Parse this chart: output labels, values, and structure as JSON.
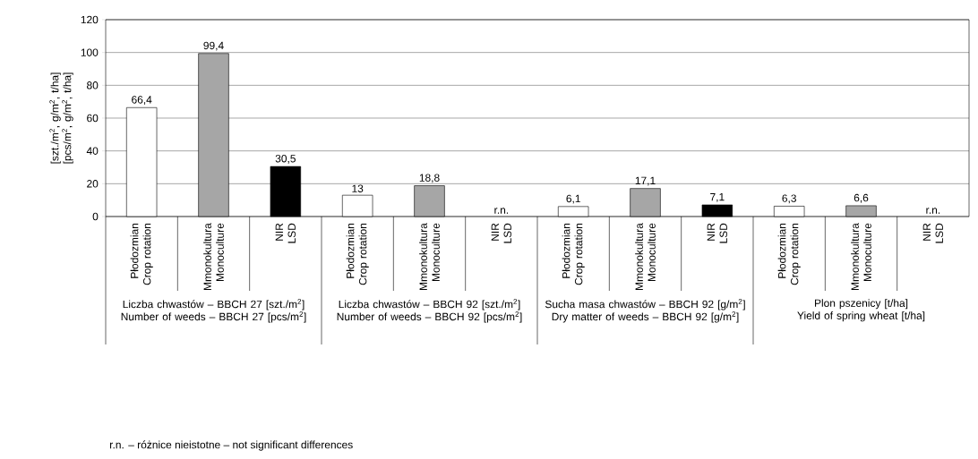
{
  "chart_data": {
    "type": "bar",
    "ylabel": "[szt./m$^{2}$, g/m$^{2}$, t/ha] [pcs/m$^{2}$, g/m$^{2}$, t/ha]",
    "categories": [
      "Płodozmian Crop rotation",
      "Mmonokultura Monoculture",
      "NIR LSD",
      "Płodozmian Crop rotation",
      "Mmonokultura Monoculture",
      "NIR LSD",
      "Płodozmian Crop rotation",
      "Mmonokultura Monoculture",
      "NIR LSD",
      "Płodozmian Crop rotation",
      "Mmonokultura Monoculture",
      "NIR LSD"
    ],
    "values": [
      66.4,
      99.4,
      30.5,
      13,
      18.8,
      null,
      6.1,
      17.1,
      7.1,
      6.3,
      6.6,
      null
    ],
    "colors": [
      "#ffffff",
      "#a6a6a6",
      "#000000",
      "#ffffff",
      "#a6a6a6",
      "#000000",
      "#ffffff",
      "#a6a6a6",
      "#000000",
      "#ffffff",
      "#a6a6a6",
      "#000000"
    ],
    "value_labels": [
      "66,4",
      "99,4",
      "30,5",
      "13",
      "18,8",
      "r.n.",
      "6,1",
      "17,1",
      "7,1",
      "6,3",
      "6,6",
      "r.n."
    ],
    "ylim": [
      0,
      120
    ],
    "yticks": [
      0,
      20,
      40,
      60,
      80,
      100,
      120
    ],
    "grid": "y",
    "annotations": [
      "Liczba chwastów – BBCH 27 [szt./m$^{2}$]",
      "Number of weeds – BBCH 27 [pcs/m$^{2}$]",
      "Liczba chwastów – BBCH 92 [szt./m$^{2}$]",
      "Number of weeds – BBCH 92 [pcs/m$^{2}$]",
      "Sucha masa chwastów – BBCH 92 [g/m$^{2}$]",
      "Dry matter of weeds – BBCH 92 [g/m$^{2}$]",
      "Plon pszenicy [t/ha]",
      "Yield of spring wheat [t/ha]",
      "r.n. – różnice nieistotne – not significant differences"
    ]
  }
}
